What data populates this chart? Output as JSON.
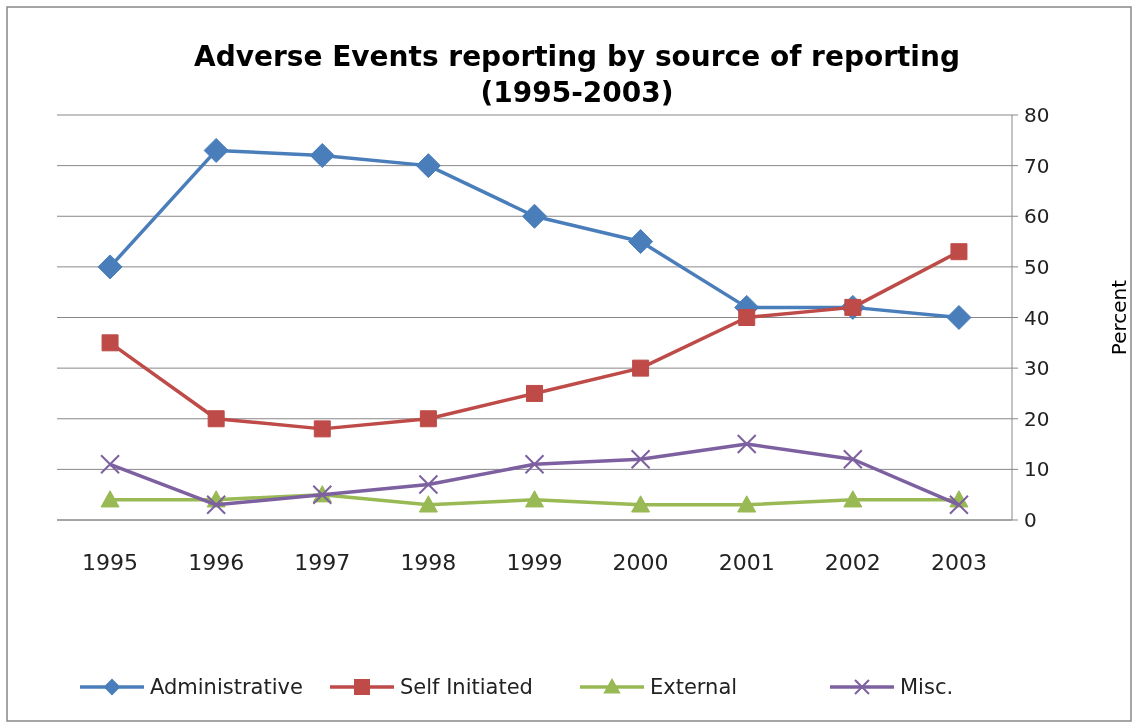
{
  "chart_data": {
    "type": "line",
    "title": "Adverse Events reporting by source of reporting (1995-2003)",
    "ylabel": "Percent",
    "categories": [
      "1995",
      "1996",
      "1997",
      "1998",
      "1999",
      "2000",
      "2001",
      "2002",
      "2003"
    ],
    "series": [
      {
        "name": "Administrative",
        "color": "#4a7ebb",
        "marker": "diamond",
        "values": [
          50,
          73,
          72,
          70,
          60,
          55,
          42,
          42,
          40
        ]
      },
      {
        "name": "Self Initiated",
        "color": "#be4b48",
        "marker": "square",
        "values": [
          35,
          20,
          18,
          20,
          25,
          30,
          40,
          42,
          53
        ]
      },
      {
        "name": "External",
        "color": "#98b954",
        "marker": "triangle",
        "values": [
          4,
          4,
          5,
          3,
          4,
          3,
          3,
          4,
          4
        ]
      },
      {
        "name": "Misc.",
        "color": "#7d60a0",
        "marker": "cross",
        "values": [
          11,
          3,
          5,
          7,
          11,
          12,
          15,
          12,
          3
        ]
      }
    ],
    "ylim": [
      0,
      80
    ],
    "yticks": [
      0,
      10,
      20,
      30,
      40,
      50,
      60,
      70,
      80
    ],
    "grid": "y",
    "legend": "bottom"
  }
}
